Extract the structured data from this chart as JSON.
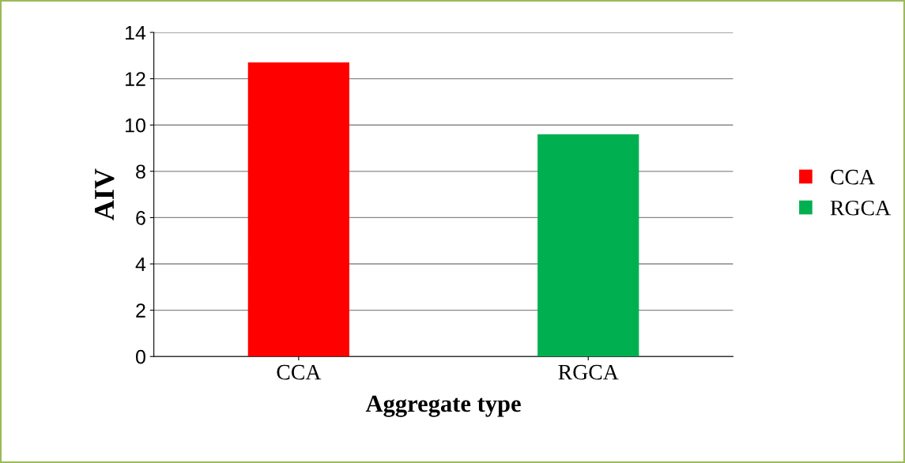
{
  "chart_data": {
    "type": "bar",
    "xlabel": "Aggregate type",
    "ylabel": "AIV",
    "categories": [
      "CCA",
      "RGCA"
    ],
    "series": [
      {
        "name": "CCA",
        "color": "#ff0000",
        "values": [
          12.7,
          null
        ]
      },
      {
        "name": "RGCA",
        "color": "#00b050",
        "values": [
          null,
          9.6
        ]
      }
    ],
    "ylim": [
      0,
      14
    ],
    "yticks": [
      0,
      2,
      4,
      6,
      8,
      10,
      12,
      14
    ],
    "grid": "y",
    "legend": "right"
  }
}
